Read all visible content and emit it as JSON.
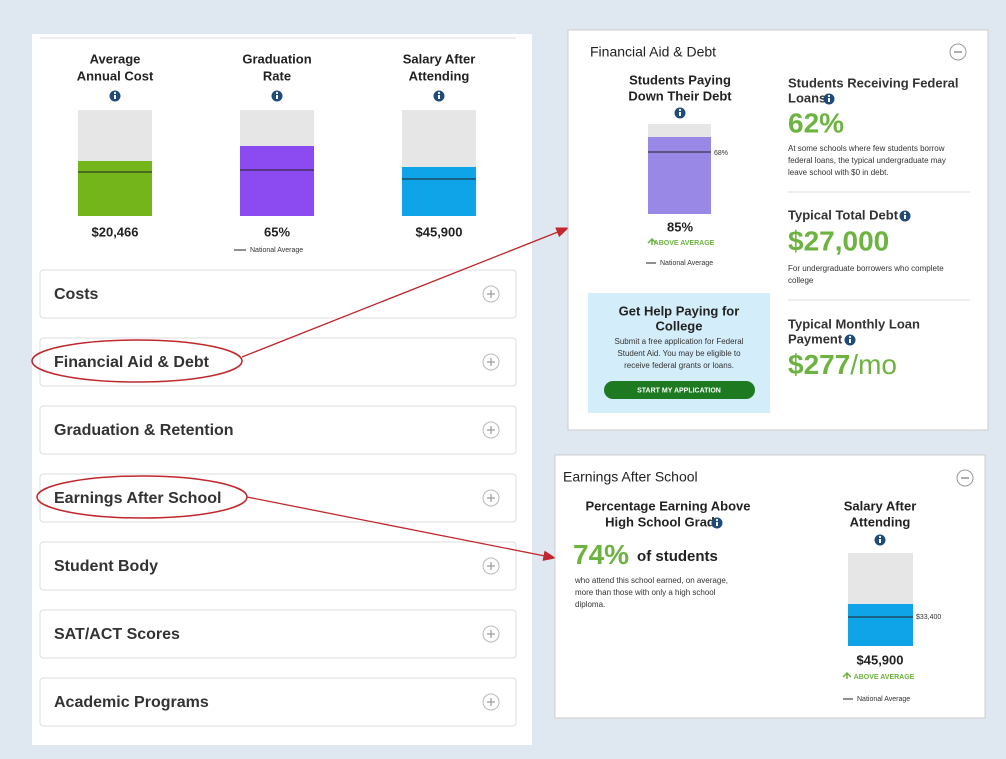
{
  "summary": {
    "metrics": [
      {
        "title": [
          "Average",
          "Annual Cost"
        ],
        "value": "$20,466"
      },
      {
        "title": [
          "Graduation",
          "Rate"
        ],
        "value": "65%"
      },
      {
        "title": [
          "Salary After",
          "Attending"
        ],
        "value": "$45,900"
      }
    ],
    "legend": "National Average"
  },
  "sections": [
    "Costs",
    "Financial Aid & Debt",
    "Graduation & Retention",
    "Earnings After School",
    "Student Body",
    "SAT/ACT Scores",
    "Academic Programs"
  ],
  "financial_aid": {
    "title": "Financial Aid & Debt",
    "repayment": {
      "title": [
        "Students Paying",
        "Down Their Debt"
      ],
      "national": "68%",
      "value": "85%",
      "badge": "ABOVE AVERAGE",
      "legend": "National Average"
    },
    "help": {
      "title": [
        "Get Help Paying for",
        "College"
      ],
      "text": [
        "Submit a free application for Federal",
        "Student Aid. You may be eligible to",
        "receive federal grants or loans."
      ],
      "button": "START MY APPLICATION"
    },
    "loans": {
      "title": [
        "Students Receiving Federal",
        "Loans"
      ],
      "value": "62%",
      "text": [
        "At some schools where few students borrow",
        "federal loans, the typical undergraduate may",
        "leave school with $0 in debt."
      ]
    },
    "total_debt": {
      "title": "Typical Total Debt",
      "value": "$27,000",
      "text": [
        "For undergraduate borrowers who complete",
        "college"
      ]
    },
    "monthly": {
      "title": [
        "Typical Monthly Loan",
        "Payment"
      ],
      "value": "$277",
      "unit": "/mo"
    }
  },
  "earnings": {
    "title": "Earnings After School",
    "percentage": {
      "title": [
        "Percentage Earning Above",
        "High School Grad"
      ],
      "value": "74%",
      "unit": "of students",
      "text": [
        "who attend this school earned, on average,",
        "more than those with only a high school",
        "diploma."
      ]
    },
    "salary": {
      "title": [
        "Salary After",
        "Attending"
      ],
      "national": "$33,400",
      "value": "$45,900",
      "badge": "ABOVE AVERAGE",
      "legend": "National Average"
    }
  }
}
